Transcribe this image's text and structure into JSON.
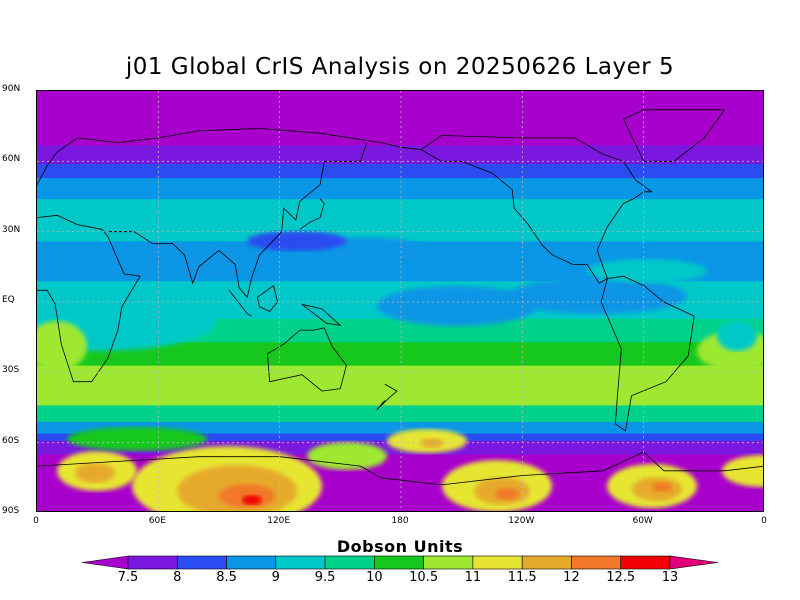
{
  "title": "j01 Global CrIS Analysis on 20250626 Layer 5",
  "colorbar_title": "Dobson Units",
  "lat_labels": [
    "90N",
    "60N",
    "30N",
    "EQ",
    "30S",
    "60S",
    "90S"
  ],
  "lon_labels": [
    "0",
    "60E",
    "120E",
    "180",
    "120W",
    "60W",
    "0"
  ],
  "colorbar": {
    "levels": [
      "7.5",
      "8",
      "8.5",
      "9",
      "9.5",
      "10",
      "10.5",
      "11",
      "11.5",
      "12",
      "12.5",
      "13"
    ],
    "colors": [
      "#a800cc",
      "#7a18e0",
      "#2a4cf0",
      "#0a96e6",
      "#00c8c8",
      "#00d28c",
      "#16c81e",
      "#9ee832",
      "#e6e632",
      "#e6aa2a",
      "#f07828",
      "#f00000",
      "#e0007a"
    ]
  },
  "map_data": {
    "type": "global-contour-map",
    "variable": "Dobson Units",
    "lat_range": [
      -90,
      90
    ],
    "lon_range": [
      0,
      360
    ],
    "grid_lines": true
  }
}
